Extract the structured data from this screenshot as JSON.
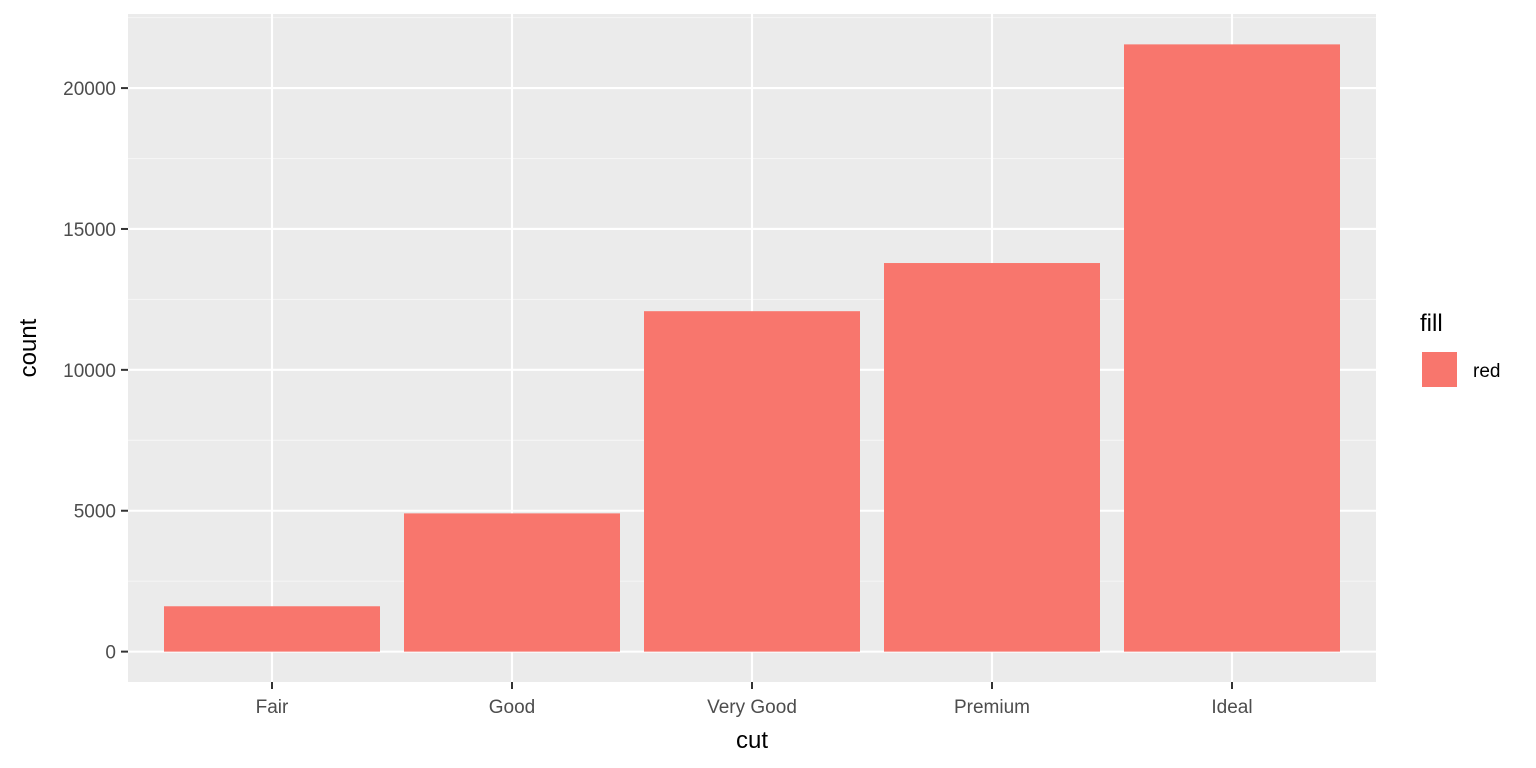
{
  "chart_data": {
    "type": "bar",
    "title": "",
    "xlabel": "cut",
    "ylabel": "count",
    "categories": [
      "Fair",
      "Good",
      "Very Good",
      "Premium",
      "Ideal"
    ],
    "values": [
      1610,
      4906,
      12082,
      13791,
      21551
    ],
    "ylim": [
      -1078,
      22629
    ],
    "y_ticks": [
      0,
      5000,
      10000,
      15000,
      20000
    ],
    "y_tick_labels": [
      "0",
      "5000",
      "10000",
      "15000",
      "20000"
    ],
    "grid": true,
    "legend": {
      "title": "fill",
      "items": [
        {
          "label": "red",
          "color": "#F8766D"
        }
      ],
      "position": "right"
    },
    "colors": {
      "bar": "#F8766D",
      "panel_background": "#EBEBEB",
      "grid_major": "#FFFFFF",
      "grid_minor": "#F5F5F5",
      "tick_mark": "#333333"
    }
  }
}
